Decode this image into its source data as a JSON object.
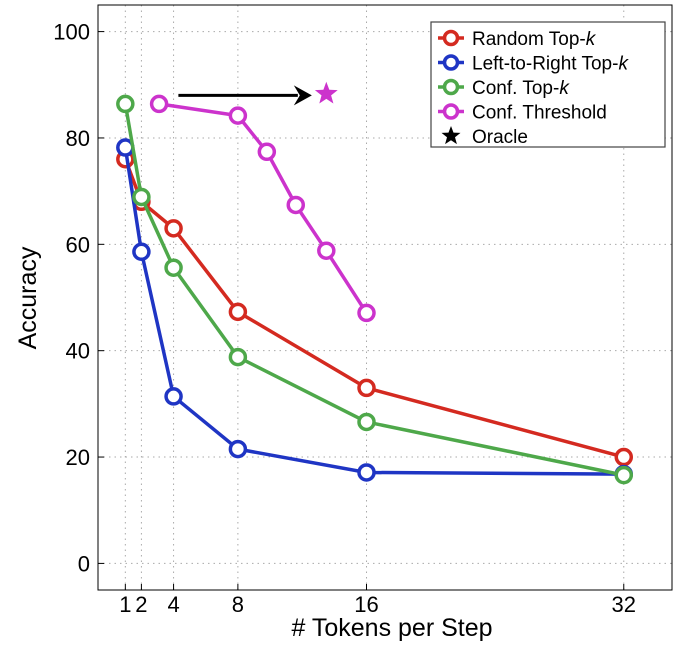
{
  "chart_data": {
    "type": "line",
    "title": "",
    "xlabel": "# Tokens per Step",
    "ylabel": "Accuracy",
    "xlim": [
      -0.7,
      35
    ],
    "ylim": [
      -5,
      105
    ],
    "xticks": [
      1,
      2,
      4,
      8,
      16,
      32
    ],
    "yticks": [
      0,
      20,
      40,
      60,
      80,
      100
    ],
    "grid": true,
    "legend_position": "top-right",
    "series": [
      {
        "name": "Random Top-k",
        "name_plain": "Random Top-",
        "name_italic": "k",
        "color": "#d42a20",
        "marker": "circle-open",
        "x": [
          1,
          2,
          4,
          8,
          16,
          32
        ],
        "y": [
          76,
          68,
          63,
          47.3,
          33,
          20
        ]
      },
      {
        "name": "Left-to-Right Top-k",
        "name_plain": "Left-to-Right Top-",
        "name_italic": "k",
        "color": "#1f35c4",
        "marker": "circle-open",
        "x": [
          1,
          2,
          4,
          8,
          16,
          32
        ],
        "y": [
          78.2,
          58.6,
          31.4,
          21.5,
          17.1,
          16.8
        ]
      },
      {
        "name": "Conf. Top-k",
        "name_plain": "Conf. Top-",
        "name_italic": "k",
        "color": "#4ea84a",
        "marker": "circle-open",
        "x": [
          1,
          2,
          4,
          8,
          16,
          32
        ],
        "y": [
          86.4,
          68.9,
          55.6,
          38.8,
          26.6,
          16.6
        ]
      },
      {
        "name": "Conf. Threshold",
        "name_plain": "Conf. Threshold",
        "name_italic": "",
        "color": "#cc33cc",
        "marker": "circle-open",
        "x": [
          3.1,
          8,
          9.8,
          11.6,
          13.5,
          16
        ],
        "y": [
          86.4,
          84.2,
          77.4,
          67.4,
          58.8,
          47.1
        ]
      },
      {
        "name": "Oracle",
        "name_plain": "Oracle",
        "name_italic": "",
        "color": "#000000",
        "marker": "star",
        "x": [
          13.5
        ],
        "y": [
          88.3
        ],
        "point_color": "#cc33cc"
      }
    ],
    "annotations": [
      {
        "type": "arrow",
        "from": [
          4.3,
          88
        ],
        "to": [
          12.6,
          88
        ],
        "color": "#000000"
      }
    ]
  }
}
